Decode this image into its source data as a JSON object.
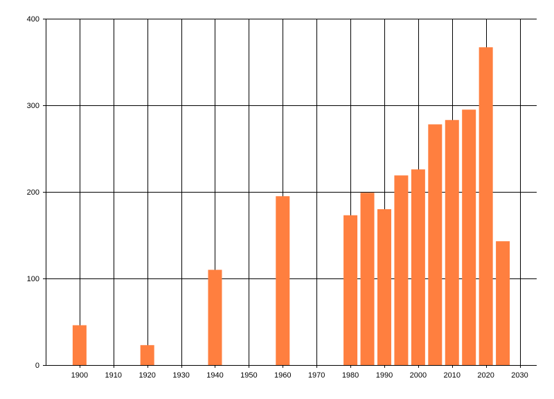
{
  "chart_data": {
    "type": "bar",
    "title": "",
    "xlabel": "",
    "ylabel": "",
    "x": [
      1900,
      1920,
      1940,
      1960,
      1980,
      1985,
      1990,
      1995,
      2000,
      2005,
      2010,
      2015,
      2020,
      2025
    ],
    "values": [
      46,
      23,
      110,
      195,
      173,
      199,
      180,
      219,
      226,
      278,
      283,
      295,
      367,
      143
    ],
    "xlim": [
      1890,
      2035
    ],
    "ylim": [
      0,
      400
    ],
    "x_ticks": [
      1900,
      1910,
      1920,
      1930,
      1940,
      1950,
      1960,
      1970,
      1980,
      1990,
      2000,
      2010,
      2020,
      2030
    ],
    "y_ticks": [
      0,
      100,
      200,
      300,
      400
    ],
    "grid": true,
    "bar_color": "#ff7f3f",
    "gridline_color": "#000000"
  }
}
